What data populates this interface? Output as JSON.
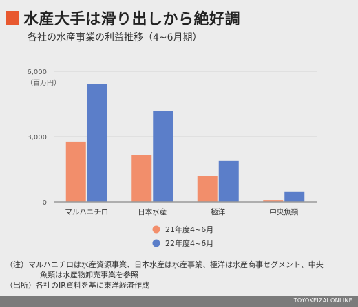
{
  "header": {
    "title": "水産大手は滑り出しから絶好調",
    "subtitle": "各社の水産事業の利益推移（4~6月期）"
  },
  "chart_data": {
    "type": "bar",
    "unit_label": "（百万円）",
    "categories": [
      "マルハニチロ",
      "日本水産",
      "極洋",
      "中央魚類"
    ],
    "series": [
      {
        "name": "21年度4~6月",
        "color": "#f28e6b",
        "values": [
          2750,
          2150,
          1200,
          90
        ]
      },
      {
        "name": "22年度4~6月",
        "color": "#5b7ec9",
        "values": [
          5400,
          4200,
          1900,
          480
        ]
      }
    ],
    "ylim": [
      0,
      6000
    ],
    "yticks": [
      0,
      3000,
      6000
    ],
    "ytick_labels": [
      "0",
      "3,000",
      "6,000"
    ],
    "grid": true,
    "legend_placement": "bottom-center"
  },
  "notes": {
    "line1": "（注）マルハニチロは水産資源事業、日本水産は水産事業、極洋は水産商事セグメント、中央",
    "line2": "魚類は水産物卸売事業を参照",
    "line3": "（出所）各社のIR資料を基に東洋経済作成"
  },
  "footer": {
    "source": "TOYOKEIZAI ONLINE"
  }
}
